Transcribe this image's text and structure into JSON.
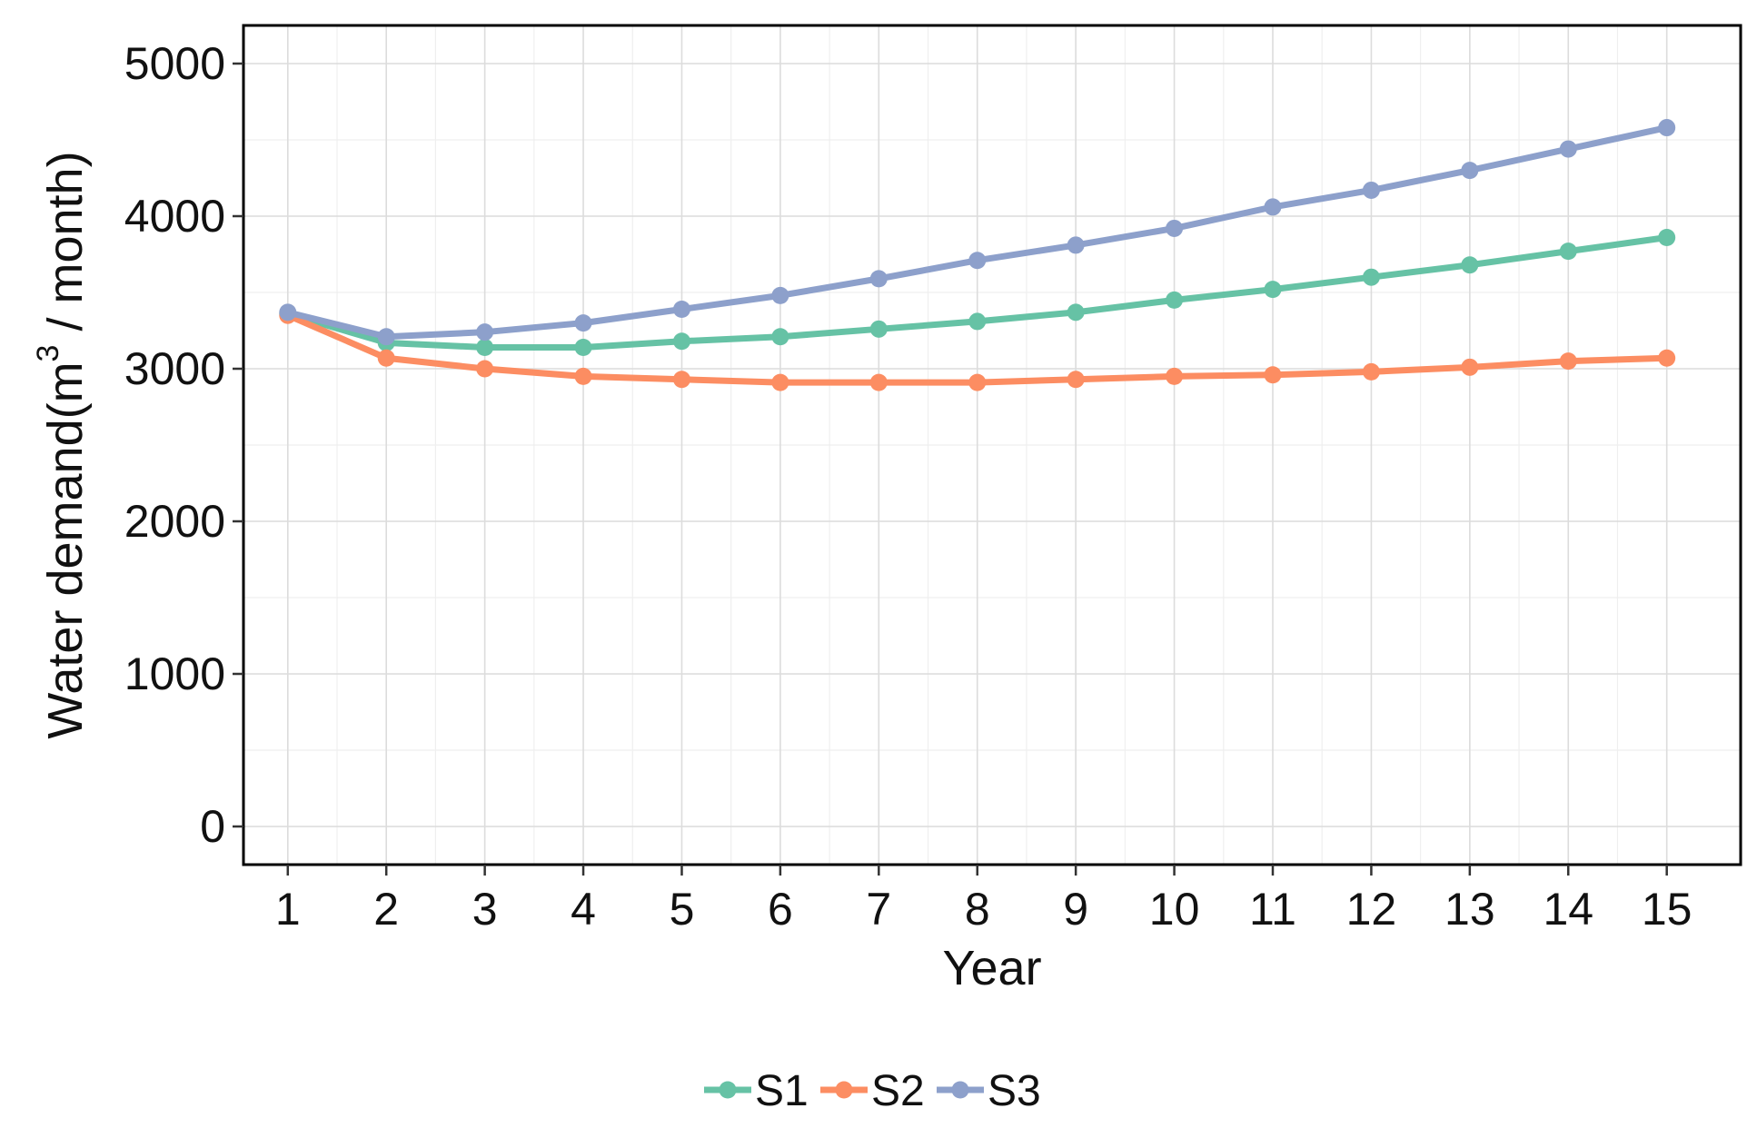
{
  "chart_data": {
    "type": "line",
    "xlabel": "Year",
    "ylabel": {
      "prefix": "Water demand",
      "open_paren": "(",
      "unit_base": "m",
      "unit_exp": "3",
      "unit_rest": " / month",
      "close_paren": ")"
    },
    "x": [
      1,
      2,
      3,
      4,
      5,
      6,
      7,
      8,
      9,
      10,
      11,
      12,
      13,
      14,
      15
    ],
    "xlim": [
      0.55,
      15.75
    ],
    "ylim": [
      -250,
      5250
    ],
    "yticks": [
      0,
      1000,
      2000,
      3000,
      4000,
      5000
    ],
    "grid": true,
    "legend_position": "bottom",
    "series": [
      {
        "name": "S1",
        "color": "#66c2a5",
        "values": [
          3360,
          3170,
          3140,
          3140,
          3180,
          3210,
          3260,
          3310,
          3370,
          3450,
          3520,
          3600,
          3680,
          3770,
          3860
        ]
      },
      {
        "name": "S2",
        "color": "#fc8d62",
        "values": [
          3350,
          3070,
          3000,
          2950,
          2930,
          2910,
          2910,
          2910,
          2930,
          2950,
          2960,
          2980,
          3010,
          3050,
          3070
        ]
      },
      {
        "name": "S3",
        "color": "#8da0cb",
        "values": [
          3370,
          3210,
          3240,
          3300,
          3390,
          3480,
          3590,
          3710,
          3810,
          3920,
          4060,
          4170,
          4300,
          4440,
          4580
        ]
      }
    ]
  }
}
